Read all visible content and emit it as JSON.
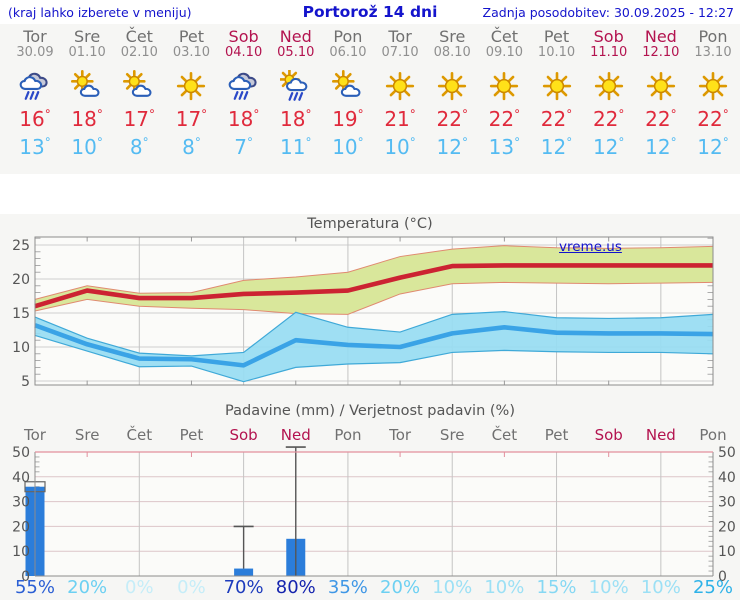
{
  "header": {
    "note": "(kraj lahko izberete v meniju)",
    "title": "Portorož 14 dni",
    "updated": "Zadnja posodobitev: 30.09.2025 - 12:27"
  },
  "watermark": "vreme.us",
  "misc": {
    "degree": "°"
  },
  "colors": {
    "header_text": "#1414cc",
    "weekend": "#b3134f",
    "weekday": "#707070",
    "high_temp": "#e02a3c",
    "low_temp": "#54bbf2",
    "temp_max_line": "#cc2332",
    "temp_max_band": "#d9e79b",
    "temp_min_line": "#3aa3e6",
    "temp_min_band": "#97dcf2",
    "bar_fill": "#2b7dda",
    "panel_bg": "#f6f6f4"
  },
  "days": [
    {
      "name": "Tor",
      "date": "30.09",
      "weekend": false,
      "icon": "rain",
      "high": 16,
      "low": 13,
      "prob": "55%",
      "prob_color": "#2b5fd4"
    },
    {
      "name": "Sre",
      "date": "01.10",
      "weekend": false,
      "icon": "sun-cloud",
      "high": 18,
      "low": 10,
      "prob": "20%",
      "prob_color": "#6cd0f2"
    },
    {
      "name": "Čet",
      "date": "02.10",
      "weekend": false,
      "icon": "sun-cloud",
      "high": 17,
      "low": 8,
      "prob": "0%",
      "prob_color": "#c6edf8"
    },
    {
      "name": "Pet",
      "date": "03.10",
      "weekend": false,
      "icon": "sun",
      "high": 17,
      "low": 8,
      "prob": "0%",
      "prob_color": "#c6edf8"
    },
    {
      "name": "Sob",
      "date": "04.10",
      "weekend": true,
      "icon": "rain",
      "high": 18,
      "low": 7,
      "prob": "70%",
      "prob_color": "#1d3cbd"
    },
    {
      "name": "Ned",
      "date": "05.10",
      "weekend": true,
      "icon": "sun-cloud-rain",
      "high": 18,
      "low": 11,
      "prob": "80%",
      "prob_color": "#1524ae"
    },
    {
      "name": "Pon",
      "date": "06.10",
      "weekend": false,
      "icon": "sun-cloud",
      "high": 19,
      "low": 10,
      "prob": "35%",
      "prob_color": "#3f97e6"
    },
    {
      "name": "Tor",
      "date": "07.10",
      "weekend": false,
      "icon": "sun",
      "high": 21,
      "low": 10,
      "prob": "20%",
      "prob_color": "#6cd0f2"
    },
    {
      "name": "Sre",
      "date": "08.10",
      "weekend": false,
      "icon": "sun",
      "high": 22,
      "low": 12,
      "prob": "10%",
      "prob_color": "#9ce0f5"
    },
    {
      "name": "Čet",
      "date": "09.10",
      "weekend": false,
      "icon": "sun",
      "high": 22,
      "low": 13,
      "prob": "10%",
      "prob_color": "#9ce0f5"
    },
    {
      "name": "Pet",
      "date": "10.10",
      "weekend": false,
      "icon": "sun",
      "high": 22,
      "low": 12,
      "prob": "15%",
      "prob_color": "#86d8f3"
    },
    {
      "name": "Sob",
      "date": "11.10",
      "weekend": true,
      "icon": "sun",
      "high": 22,
      "low": 12,
      "prob": "10%",
      "prob_color": "#9ce0f5"
    },
    {
      "name": "Ned",
      "date": "12.10",
      "weekend": true,
      "icon": "sun",
      "high": 22,
      "low": 12,
      "prob": "10%",
      "prob_color": "#9ce0f5"
    },
    {
      "name": "Pon",
      "date": "13.10",
      "weekend": false,
      "icon": "sun",
      "high": 22,
      "low": 12,
      "prob": "25%",
      "prob_color": "#2eb2e8"
    }
  ],
  "chart_data": [
    {
      "type": "line",
      "title": "Temperatura (°C)",
      "categories": [
        "30.09",
        "01.10",
        "02.10",
        "03.10",
        "04.10",
        "05.10",
        "06.10",
        "07.10",
        "08.10",
        "09.10",
        "10.10",
        "11.10",
        "12.10",
        "13.10"
      ],
      "yticks": [
        5,
        10,
        15,
        20,
        25
      ],
      "ylim": [
        4.4,
        26.2
      ],
      "grid": true,
      "series": [
        {
          "name": "temp-max-mean",
          "color": "#cc2332",
          "values": [
            16,
            18.3,
            17.2,
            17.2,
            17.8,
            18,
            18.3,
            20.2,
            21.9,
            22,
            22,
            22,
            22,
            22
          ]
        },
        {
          "name": "temp-max-band-upper",
          "color": "#d9e79b",
          "values": [
            17,
            19,
            17.9,
            18,
            19.8,
            20.3,
            21,
            23.3,
            24.4,
            24.9,
            24.6,
            24.5,
            24.6,
            24.8
          ]
        },
        {
          "name": "temp-max-band-lower",
          "color": "#d9e79b",
          "values": [
            15.3,
            17,
            16,
            15.7,
            15.5,
            14.9,
            14.8,
            17.8,
            19.3,
            19.5,
            19.4,
            19.3,
            19.4,
            19.5
          ]
        },
        {
          "name": "temp-min-mean",
          "color": "#3aa3e6",
          "values": [
            13.2,
            10.4,
            8.3,
            8.2,
            7.3,
            11,
            10.3,
            10,
            12,
            12.9,
            12.1,
            12,
            12,
            11.9
          ]
        },
        {
          "name": "temp-min-band-upper",
          "color": "#97dcf2",
          "values": [
            14.4,
            11.3,
            9.1,
            8.7,
            9.2,
            15.1,
            12.9,
            12.2,
            14.8,
            15.2,
            14.3,
            14.2,
            14.3,
            14.8
          ]
        },
        {
          "name": "temp-min-band-lower",
          "color": "#97dcf2",
          "values": [
            11.7,
            9.4,
            7.1,
            7.2,
            4.9,
            7,
            7.5,
            7.7,
            9.2,
            9.5,
            9.3,
            9.2,
            9.2,
            9
          ]
        }
      ]
    },
    {
      "type": "bar",
      "title": "Padavine (mm) / Verjetnost padavin (%)",
      "categories": [
        "Tor",
        "Sre",
        "Čet",
        "Pet",
        "Sob",
        "Ned",
        "Pon",
        "Tor",
        "Sre",
        "Čet",
        "Pet",
        "Sob",
        "Ned",
        "Pon"
      ],
      "yticks": [
        0,
        10,
        20,
        30,
        40,
        50
      ],
      "ylim": [
        0,
        52
      ],
      "values": [
        36,
        0,
        0,
        0,
        3,
        15,
        0,
        0,
        0,
        0,
        0,
        0,
        0,
        0
      ],
      "whiskers": [
        {
          "low": 34,
          "high": 38
        },
        null,
        null,
        null,
        {
          "low": 3,
          "high": 20
        },
        {
          "low": 0,
          "high": 52
        },
        null,
        null,
        null,
        null,
        null,
        null,
        null,
        null
      ],
      "probabilities": [
        "55%",
        "20%",
        "0%",
        "0%",
        "70%",
        "80%",
        "35%",
        "20%",
        "10%",
        "10%",
        "15%",
        "10%",
        "10%",
        "25%"
      ]
    }
  ]
}
